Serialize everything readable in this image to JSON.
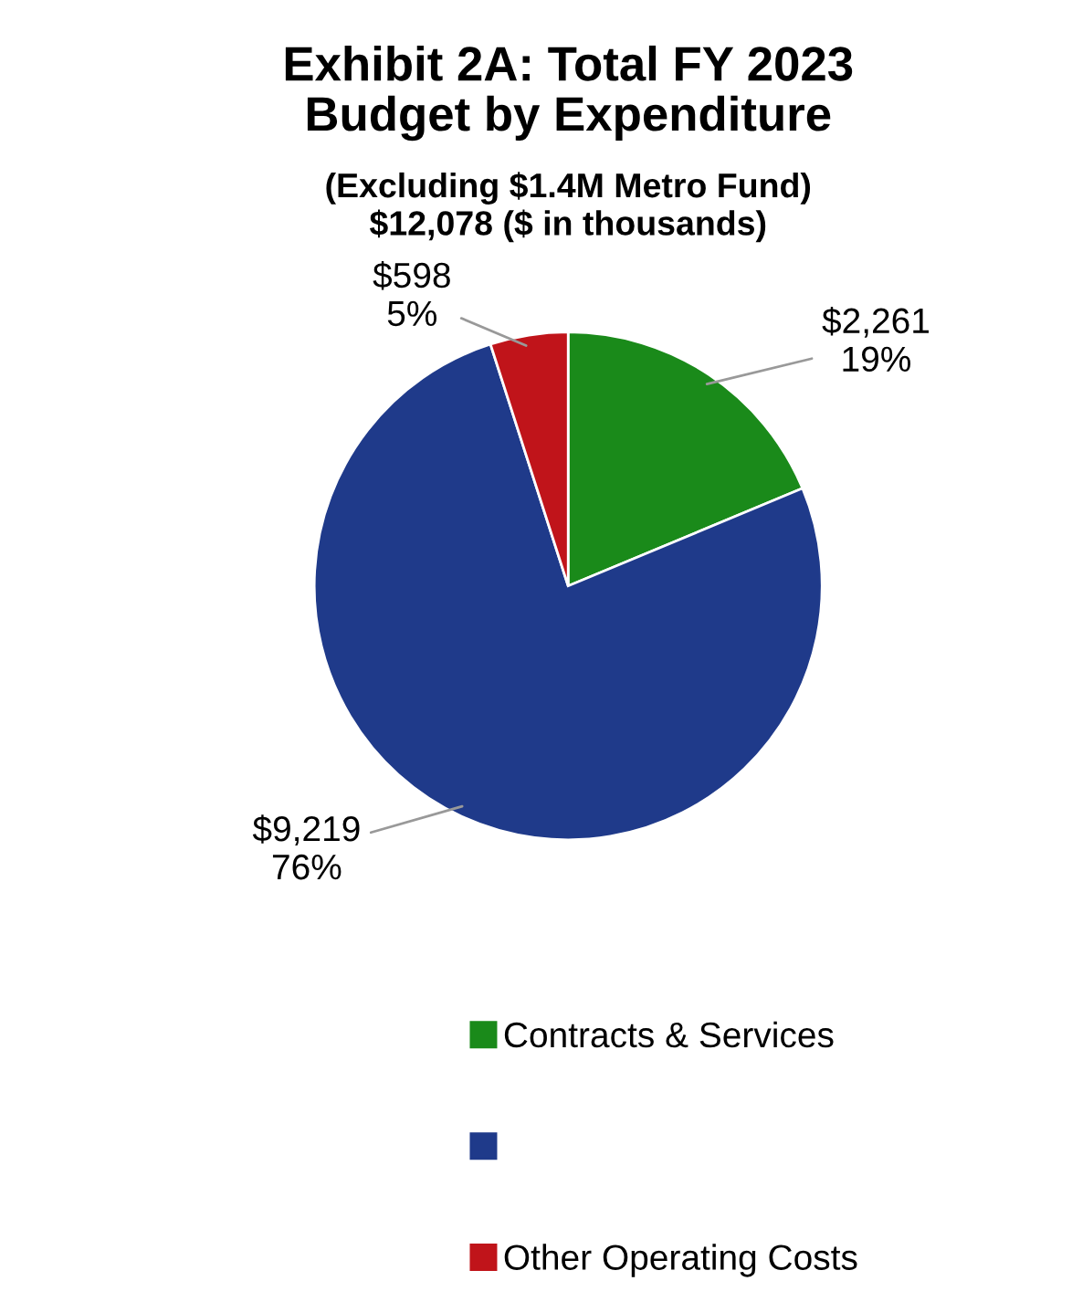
{
  "chart_data": {
    "type": "pie",
    "title": "Exhibit 2A: Total FY 2023\nBudget by Expenditure",
    "subtitle": "(Excluding $1.4M Metro Fund)\n$12,078 ($ in thousands)",
    "categories": [
      "Contracts & Services",
      null,
      "Other Operating Costs"
    ],
    "values": [
      2261,
      9219,
      598
    ],
    "value_labels": [
      "$2,261\n19%",
      "$9,219\n76%",
      "$598\n5%"
    ],
    "colors": [
      "#1a8a1a",
      "#1f3a8a",
      "#c0141a"
    ],
    "legend": "bottom"
  }
}
